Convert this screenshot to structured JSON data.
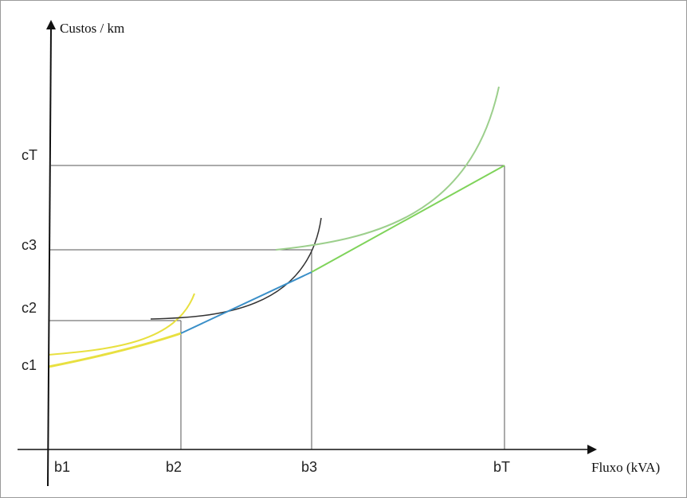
{
  "axes": {
    "y_title": "Custos / km",
    "x_title": "Fluxo (kVA)"
  },
  "y_labels": {
    "cT": "cT",
    "c3": "c3",
    "c2": "c2",
    "c1": "c1"
  },
  "x_labels": {
    "b1": "b1",
    "b2": "b2",
    "b3": "b3",
    "bT": "bT"
  },
  "colors": {
    "axis": "#111111",
    "guide": "#555555",
    "curve_b1": "#e8e040",
    "curve_b2": "#333333",
    "curve_b3": "#9ccf8c",
    "envelope_yellow": "#e8e040",
    "envelope_blue": "#3a8fc8",
    "envelope_green": "#7fd35a"
  }
}
